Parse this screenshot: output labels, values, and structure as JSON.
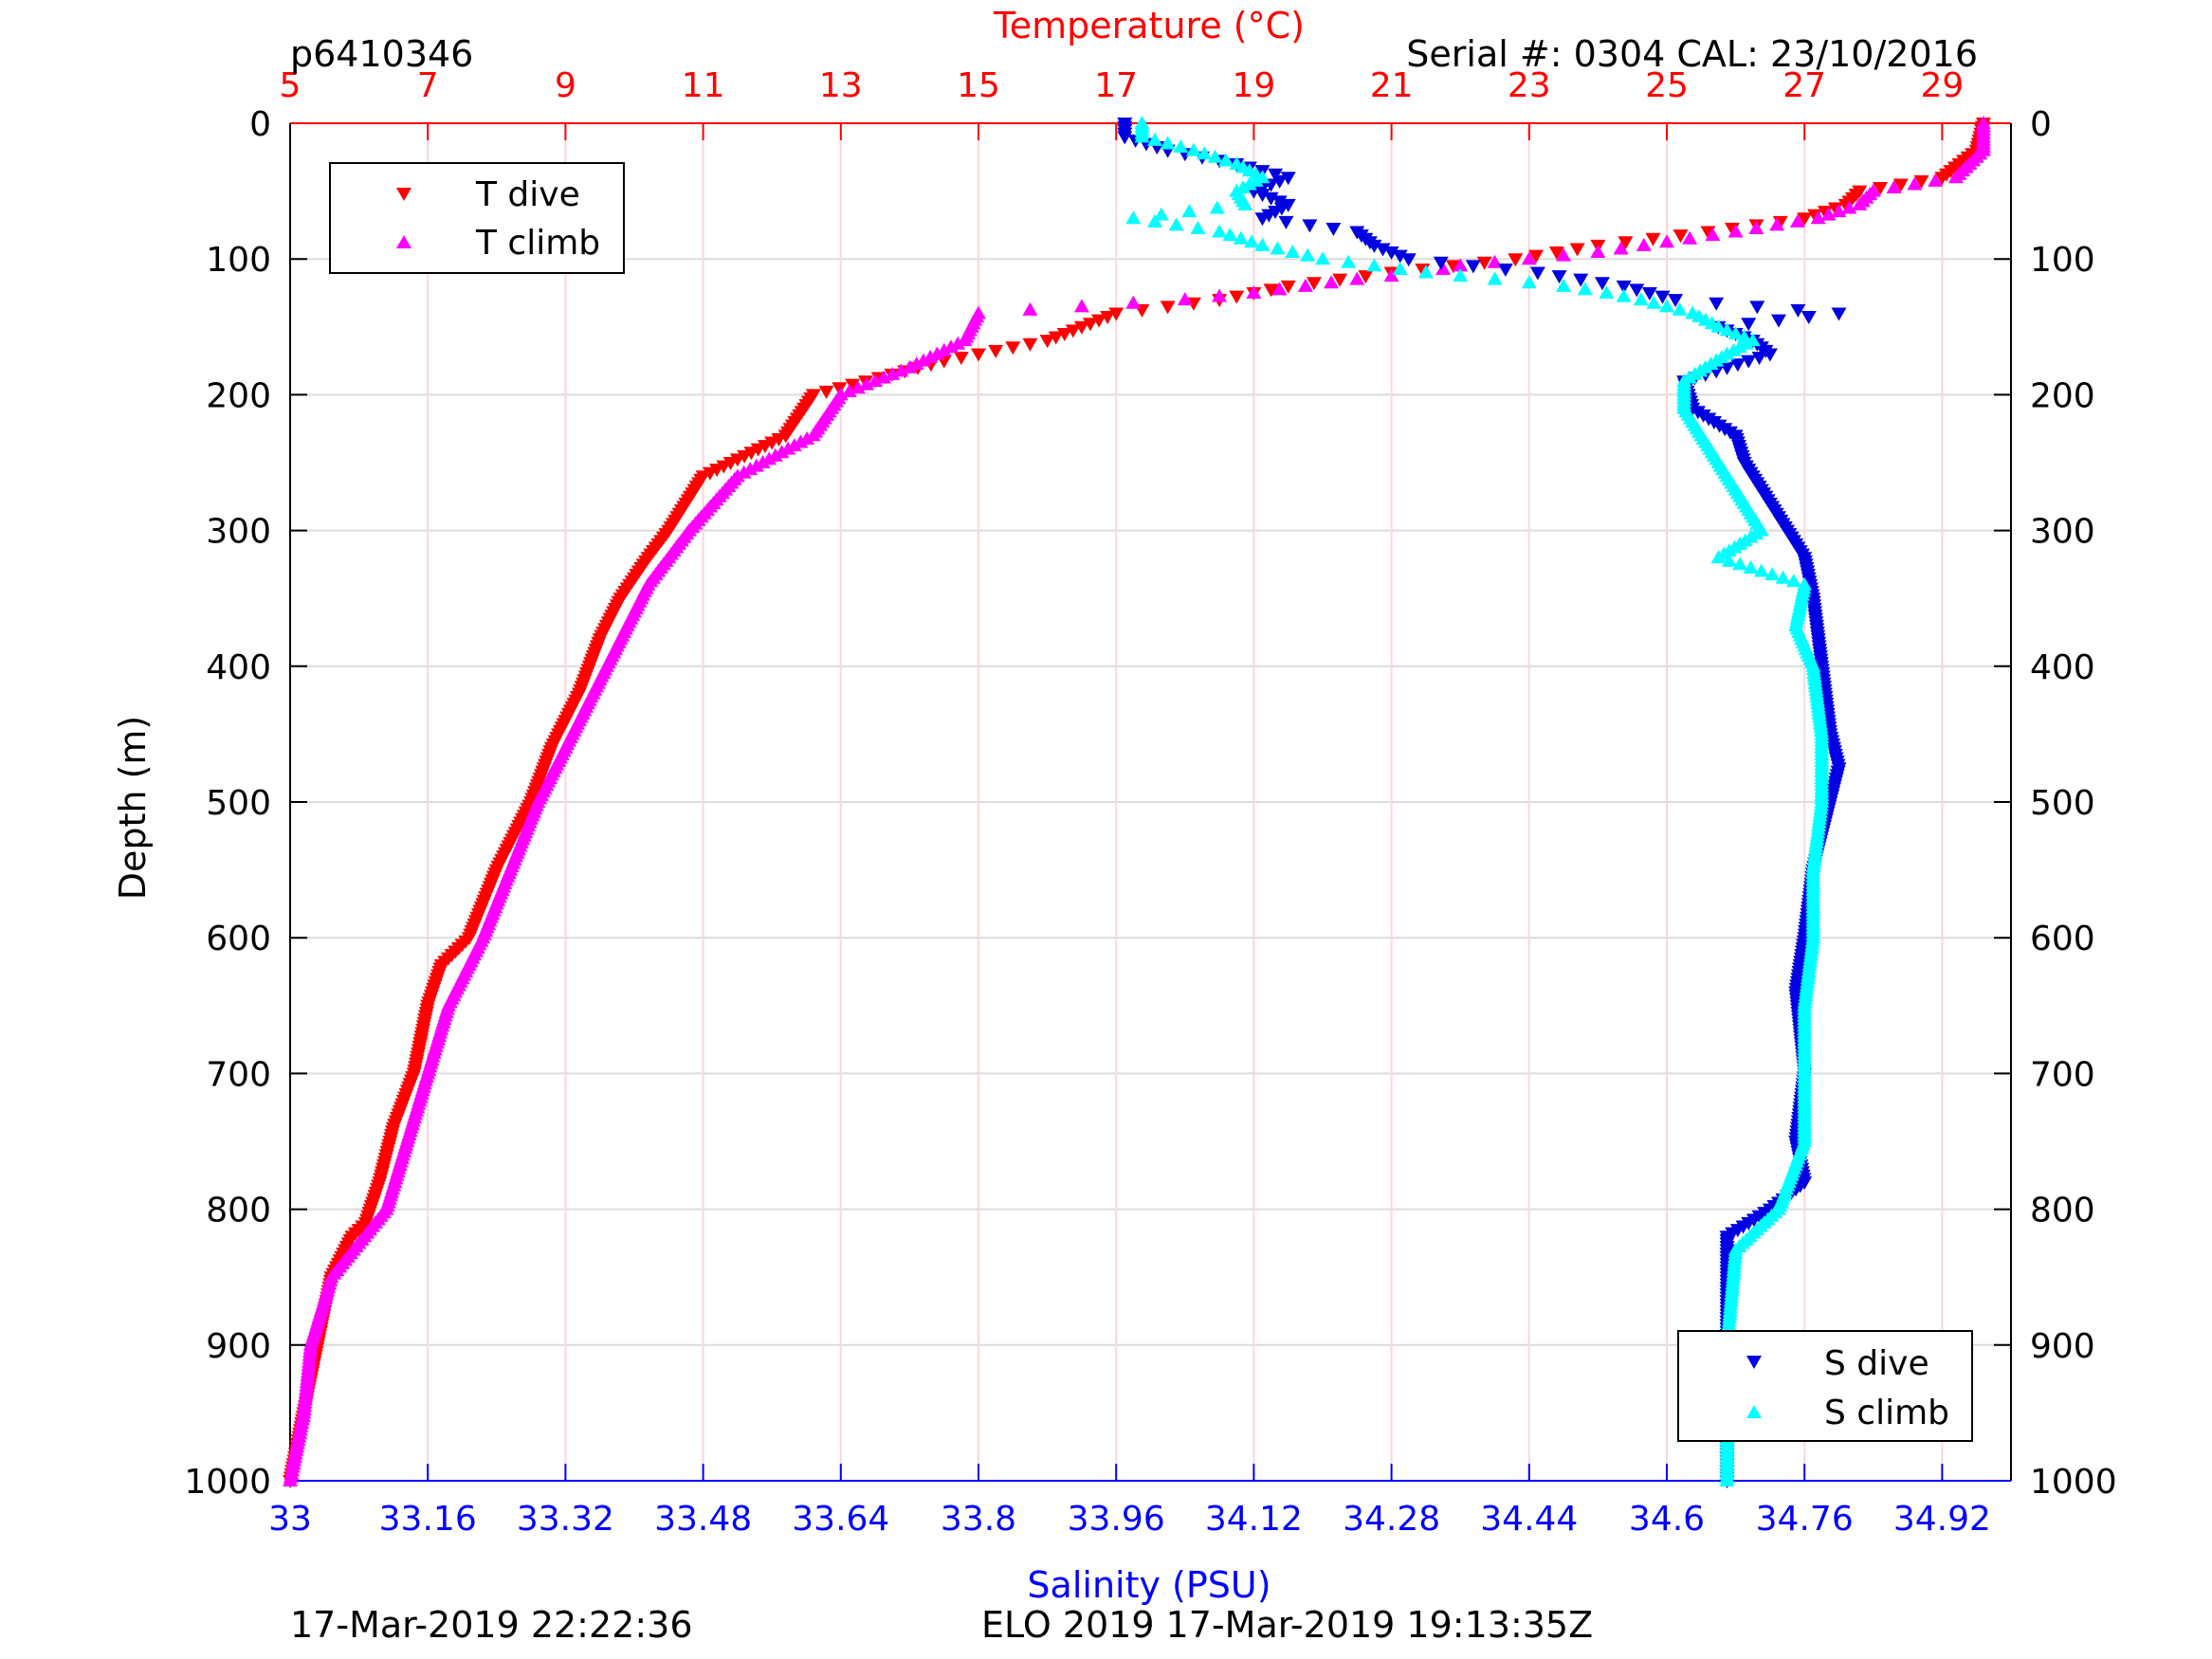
{
  "header": {
    "profile_id": "p6410346",
    "serial": "Serial #: 0304  CAL: 23/10/2016"
  },
  "footer": {
    "left_timestamp": "17-Mar-2019 22:22:36",
    "center_text": "ELO 2019 17-Mar-2019 19:13:35Z"
  },
  "colors": {
    "temperature_axis": "#ff0000",
    "salinity_axis": "#0000ff",
    "t_dive": "#ff0000",
    "t_climb": "#ff00ff",
    "s_dive": "#0000e0",
    "s_climb": "#00ffff"
  },
  "chart_data": {
    "type": "scatter",
    "title": "",
    "ylabel": "Depth (m)",
    "ylim": [
      0,
      1000
    ],
    "y_inverted": true,
    "yticks": [
      "0",
      "100",
      "200",
      "300",
      "400",
      "500",
      "600",
      "700",
      "800",
      "900",
      "1000"
    ],
    "top_axis": {
      "label": "Temperature (°C)",
      "lim": [
        5,
        30
      ],
      "ticks": [
        "5",
        "7",
        "9",
        "11",
        "13",
        "15",
        "17",
        "19",
        "21",
        "23",
        "25",
        "27",
        "29"
      ]
    },
    "bottom_axis": {
      "label": "Salinity (PSU)",
      "lim": [
        33,
        35
      ],
      "ticks": [
        "33",
        "33.16",
        "33.32",
        "33.48",
        "33.64",
        "33.8",
        "33.96",
        "34.12",
        "34.28",
        "34.44",
        "34.6",
        "34.76",
        "34.92"
      ]
    },
    "grid": true,
    "legends": {
      "temperature": {
        "placement": "top-left",
        "entries": [
          "T dive",
          "T climb"
        ]
      },
      "salinity": {
        "placement": "bottom-right",
        "entries": [
          "S dive",
          "S climb"
        ]
      }
    },
    "series": [
      {
        "name": "T dive",
        "axis": "temperature",
        "marker": "triangle-down",
        "depth": [
          0,
          20,
          40,
          50,
          60,
          70,
          80,
          90,
          100,
          110,
          120,
          130,
          140,
          160,
          175,
          200,
          230,
          260,
          300,
          320,
          350,
          380,
          420,
          460,
          500,
          550,
          600,
          620,
          650,
          700,
          740,
          780,
          810,
          820,
          850,
          900,
          950,
          1000
        ],
        "values": [
          29.6,
          29.5,
          29.0,
          27.8,
          27.6,
          27.0,
          25.6,
          24.0,
          22.8,
          21.0,
          19.5,
          18.5,
          17.0,
          16.0,
          14.5,
          12.6,
          12.2,
          11.0,
          10.5,
          10.2,
          9.8,
          9.5,
          9.2,
          8.8,
          8.5,
          8.0,
          7.6,
          7.2,
          7.0,
          6.8,
          6.5,
          6.3,
          6.1,
          5.9,
          5.6,
          5.4,
          5.2,
          5.0
        ]
      },
      {
        "name": "T climb",
        "axis": "temperature",
        "marker": "triangle-up",
        "depth": [
          0,
          20,
          40,
          50,
          60,
          70,
          80,
          95,
          100,
          105,
          110,
          115,
          125,
          130,
          135,
          140,
          160,
          180,
          200,
          230,
          260,
          300,
          340,
          400,
          450,
          500,
          550,
          600,
          650,
          700,
          750,
          800,
          850,
          900,
          950,
          1000
        ],
        "values": [
          29.6,
          29.6,
          29.2,
          28.0,
          27.8,
          27.2,
          26.0,
          24.0,
          23.0,
          22.0,
          21.5,
          20.5,
          19.0,
          18.0,
          16.5,
          15.0,
          14.8,
          14.0,
          13.0,
          12.6,
          11.5,
          10.8,
          10.2,
          9.6,
          9.1,
          8.6,
          8.2,
          7.8,
          7.3,
          7.0,
          6.7,
          6.4,
          5.6,
          5.3,
          5.2,
          5.0
        ]
      },
      {
        "name": "S dive",
        "axis": "salinity",
        "marker": "triangle-down",
        "depth": [
          0,
          10,
          20,
          30,
          40,
          50,
          60,
          70,
          80,
          90,
          100,
          110,
          120,
          130,
          140,
          150,
          160,
          170,
          190,
          210,
          230,
          250,
          270,
          300,
          320,
          350,
          400,
          450,
          475,
          500,
          550,
          600,
          640,
          700,
          750,
          780,
          800,
          820,
          850,
          900,
          950,
          1000
        ],
        "values": [
          33.97,
          33.97,
          34.02,
          34.1,
          34.16,
          34.12,
          34.16,
          34.13,
          34.24,
          34.26,
          34.3,
          34.45,
          34.55,
          34.61,
          34.8,
          34.66,
          34.7,
          34.72,
          34.62,
          34.63,
          34.68,
          34.69,
          34.71,
          34.74,
          34.76,
          34.77,
          34.78,
          34.79,
          34.8,
          34.79,
          34.77,
          34.76,
          34.75,
          34.76,
          34.75,
          34.76,
          34.72,
          34.67,
          34.67,
          34.67,
          34.67,
          34.67
        ]
      },
      {
        "name": "S climb",
        "axis": "salinity",
        "marker": "triangle-up",
        "depth": [
          0,
          10,
          20,
          30,
          40,
          50,
          60,
          70,
          80,
          90,
          100,
          110,
          115,
          120,
          125,
          130,
          140,
          150,
          160,
          170,
          190,
          210,
          230,
          250,
          270,
          300,
          320,
          340,
          370,
          400,
          450,
          500,
          550,
          600,
          650,
          700,
          750,
          800,
          830,
          900,
          950,
          1000
        ],
        "values": [
          33.99,
          33.99,
          34.05,
          34.1,
          34.13,
          34.1,
          34.11,
          33.98,
          34.08,
          34.13,
          34.2,
          34.32,
          34.4,
          34.48,
          34.53,
          34.57,
          34.63,
          34.66,
          34.7,
          34.67,
          34.62,
          34.62,
          34.64,
          34.66,
          34.68,
          34.71,
          34.66,
          34.76,
          34.75,
          34.77,
          34.78,
          34.78,
          34.77,
          34.77,
          34.76,
          34.76,
          34.76,
          34.73,
          34.68,
          34.67,
          34.67,
          34.67
        ]
      }
    ]
  }
}
